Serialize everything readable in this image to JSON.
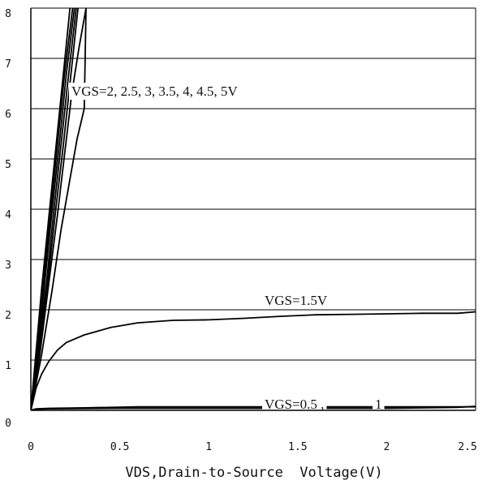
{
  "chart_data": {
    "type": "line",
    "title": "",
    "xlabel": "VDS,Drain-to-Source  Voltage(V)",
    "ylabel": "",
    "xlim": [
      0,
      2.5
    ],
    "ylim": [
      0,
      8
    ],
    "x_tick_labels": [
      "0",
      "0.5",
      "1",
      "1.5",
      "2",
      "2.5"
    ],
    "y_tick_labels": [
      "0",
      "1",
      "2",
      "3",
      "4",
      "5",
      "6",
      "7",
      "8"
    ],
    "grid": "horizontal",
    "annotations": [
      "VGS=2, 2.5, 3, 3.5, 4, 4.5, 5V",
      "VGS=1.5V",
      "VGS=0.5 ,",
      "1"
    ],
    "series": [
      {
        "values": [
          [
            0,
            0
          ],
          [
            0.03,
            1.2
          ],
          [
            0.06,
            2.4
          ],
          [
            0.1,
            3.8
          ],
          [
            0.14,
            5.2
          ],
          [
            0.18,
            6.6
          ],
          [
            0.22,
            8.0
          ]
        ]
      },
      {
        "values": [
          [
            0,
            0
          ],
          [
            0.03,
            1.1
          ],
          [
            0.07,
            2.5
          ],
          [
            0.11,
            3.9
          ],
          [
            0.15,
            5.3
          ],
          [
            0.19,
            6.7
          ],
          [
            0.235,
            8.0
          ]
        ]
      },
      {
        "values": [
          [
            0,
            0
          ],
          [
            0.04,
            1.2
          ],
          [
            0.08,
            2.6
          ],
          [
            0.12,
            4.0
          ],
          [
            0.16,
            5.3
          ],
          [
            0.2,
            6.7
          ],
          [
            0.245,
            8.0
          ]
        ]
      },
      {
        "values": [
          [
            0,
            0
          ],
          [
            0.04,
            1.1
          ],
          [
            0.09,
            2.6
          ],
          [
            0.13,
            4.0
          ],
          [
            0.17,
            5.3
          ],
          [
            0.21,
            6.6
          ],
          [
            0.255,
            8.0
          ]
        ]
      },
      {
        "values": [
          [
            0,
            0
          ],
          [
            0.05,
            1.2
          ],
          [
            0.1,
            2.7
          ],
          [
            0.14,
            4.0
          ],
          [
            0.18,
            5.2
          ],
          [
            0.22,
            6.5
          ],
          [
            0.265,
            8.0
          ]
        ]
      },
      {
        "values": [
          [
            0,
            0
          ],
          [
            0.05,
            1.1
          ],
          [
            0.1,
            2.5
          ],
          [
            0.15,
            3.9
          ],
          [
            0.19,
            5.1
          ],
          [
            0.23,
            6.3
          ],
          [
            0.27,
            7.2
          ],
          [
            0.31,
            8.0
          ]
        ]
      },
      {
        "values": [
          [
            0,
            0
          ],
          [
            0.06,
            1.1
          ],
          [
            0.12,
            2.4
          ],
          [
            0.17,
            3.6
          ],
          [
            0.22,
            4.6
          ],
          [
            0.26,
            5.4
          ],
          [
            0.3,
            6.0
          ],
          [
            0.31,
            8.0
          ]
        ]
      },
      {
        "values": [
          [
            0,
            0
          ],
          [
            0.03,
            0.45
          ],
          [
            0.06,
            0.72
          ],
          [
            0.1,
            0.97
          ],
          [
            0.15,
            1.2
          ],
          [
            0.2,
            1.35
          ],
          [
            0.3,
            1.5
          ],
          [
            0.45,
            1.65
          ],
          [
            0.6,
            1.74
          ],
          [
            0.8,
            1.79
          ],
          [
            1.0,
            1.8
          ],
          [
            1.2,
            1.83
          ],
          [
            1.4,
            1.87
          ],
          [
            1.6,
            1.9
          ],
          [
            1.8,
            1.91
          ],
          [
            2.0,
            1.92
          ],
          [
            2.2,
            1.93
          ],
          [
            2.4,
            1.93
          ],
          [
            2.5,
            1.96
          ]
        ]
      },
      {
        "values": [
          [
            0,
            0
          ],
          [
            0.03,
            0.03
          ],
          [
            0.1,
            0.04
          ],
          [
            0.3,
            0.05
          ],
          [
            0.6,
            0.07
          ],
          [
            1.0,
            0.07
          ],
          [
            1.5,
            0.07
          ],
          [
            2.0,
            0.07
          ],
          [
            2.5,
            0.07
          ]
        ]
      },
      {
        "values": [
          [
            0,
            0
          ],
          [
            0.02,
            0.02
          ],
          [
            0.1,
            0.03
          ],
          [
            0.5,
            0.04
          ],
          [
            1.0,
            0.04
          ],
          [
            1.5,
            0.04
          ],
          [
            2.0,
            0.04
          ],
          [
            2.4,
            0.06
          ],
          [
            2.5,
            0.08
          ]
        ]
      }
    ]
  }
}
